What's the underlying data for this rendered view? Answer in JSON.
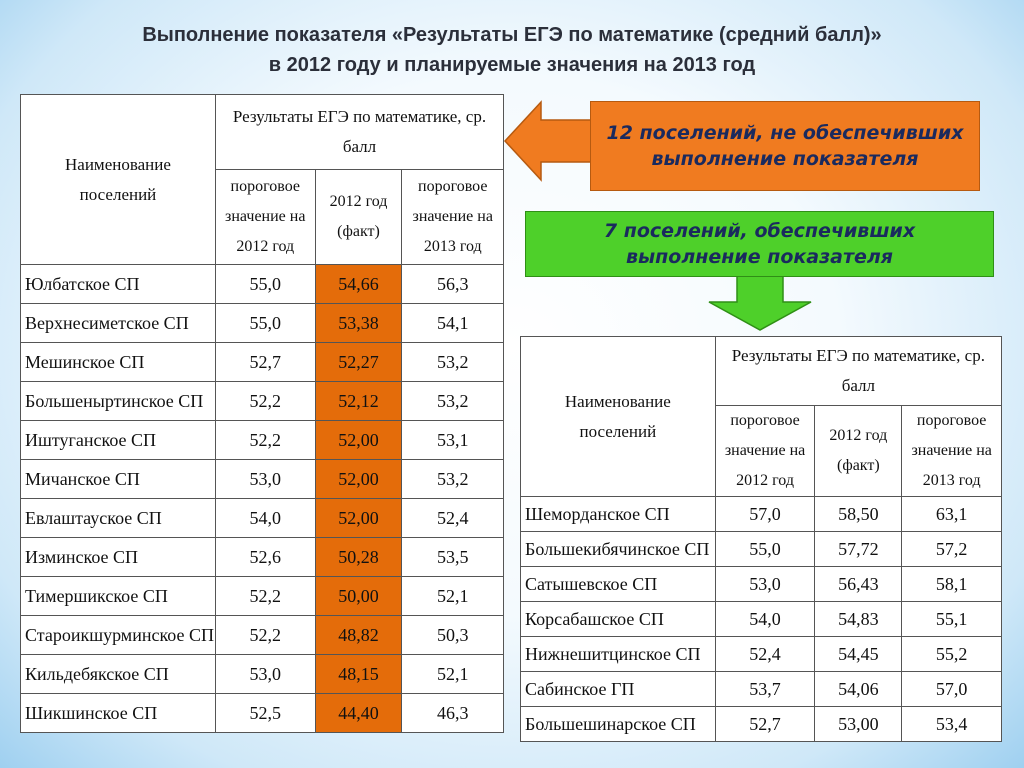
{
  "title": {
    "line1": "Выполнение показателя «Результаты ЕГЭ по математике (средний балл)»",
    "line2": "в 2012 году и планируемые значения на 2013 год"
  },
  "colors": {
    "highlight": "#e46c0a",
    "orange_callout": "#f07b20",
    "green_callout": "#4ed02a",
    "callout_text": "#1a2a5e"
  },
  "callouts": {
    "orange": {
      "line1": "12 поселений, не обеспечивших",
      "line2": "выполнение показателя"
    },
    "green": {
      "line1": "7 поселений, обеспечивших",
      "line2": "выполнение показателя"
    }
  },
  "headers": {
    "name_line1": "Наименование",
    "name_line2": "поселений",
    "group_line1": "Результаты ЕГЭ по математике, ср.",
    "group_line2": "балл",
    "c1": [
      "пороговое",
      "значение на",
      "2012 год"
    ],
    "c2": [
      "2012 год",
      "(факт)"
    ],
    "c3": [
      "пороговое",
      "значение на",
      "2013 год"
    ]
  },
  "left_table": {
    "rows": [
      {
        "name": "Юлбатское СП",
        "threshold_2012": "55,0",
        "fact_2012": "54,66",
        "threshold_2013": "56,3"
      },
      {
        "name": "Верхнесиметское СП",
        "threshold_2012": "55,0",
        "fact_2012": "53,38",
        "threshold_2013": "54,1"
      },
      {
        "name": "Мешинское СП",
        "threshold_2012": "52,7",
        "fact_2012": "52,27",
        "threshold_2013": "53,2"
      },
      {
        "name": "Большенырт­инское СП",
        "threshold_2012": "52,2",
        "fact_2012": "52,12",
        "threshold_2013": "53,2"
      },
      {
        "name": "Иштуганское СП",
        "threshold_2012": "52,2",
        "fact_2012": "52,00",
        "threshold_2013": "53,1"
      },
      {
        "name": "Мичанское СП",
        "threshold_2012": "53,0",
        "fact_2012": "52,00",
        "threshold_2013": "53,2"
      },
      {
        "name": "Евлаштауское СП",
        "threshold_2012": "54,0",
        "fact_2012": "52,00",
        "threshold_2013": "52,4"
      },
      {
        "name": "Изминское СП",
        "threshold_2012": "52,6",
        "fact_2012": "50,28",
        "threshold_2013": "53,5"
      },
      {
        "name": "Тимершикское СП",
        "threshold_2012": "52,2",
        "fact_2012": "50,00",
        "threshold_2013": "52,1"
      },
      {
        "name": "Староикшурминское СП",
        "threshold_2012": "52,2",
        "fact_2012": "48,82",
        "threshold_2013": "50,3"
      },
      {
        "name": "Кильдебякское СП",
        "threshold_2012": "53,0",
        "fact_2012": "48,15",
        "threshold_2013": "52,1"
      },
      {
        "name": "Шикшинское СП",
        "threshold_2012": "52,5",
        "fact_2012": "44,40",
        "threshold_2013": "46,3"
      }
    ]
  },
  "right_table": {
    "rows": [
      {
        "name": "Шеморданское СП",
        "threshold_2012": "57,0",
        "fact_2012": "58,50",
        "threshold_2013": "63,1"
      },
      {
        "name": "Большекибячинское СП",
        "threshold_2012": "55,0",
        "fact_2012": "57,72",
        "threshold_2013": "57,2"
      },
      {
        "name": "Сатышевское СП",
        "threshold_2012": "53,0",
        "fact_2012": "56,43",
        "threshold_2013": "58,1"
      },
      {
        "name": "Корсабашское СП",
        "threshold_2012": "54,0",
        "fact_2012": "54,83",
        "threshold_2013": "55,1"
      },
      {
        "name": "Нижнешитцинское СП",
        "threshold_2012": "52,4",
        "fact_2012": "54,45",
        "threshold_2013": "55,2"
      },
      {
        "name": "Сабинское ГП",
        "threshold_2012": "53,7",
        "fact_2012": "54,06",
        "threshold_2013": "57,0"
      },
      {
        "name": "Большешинарское СП",
        "threshold_2012": "52,7",
        "fact_2012": "53,00",
        "threshold_2013": "53,4"
      }
    ]
  }
}
